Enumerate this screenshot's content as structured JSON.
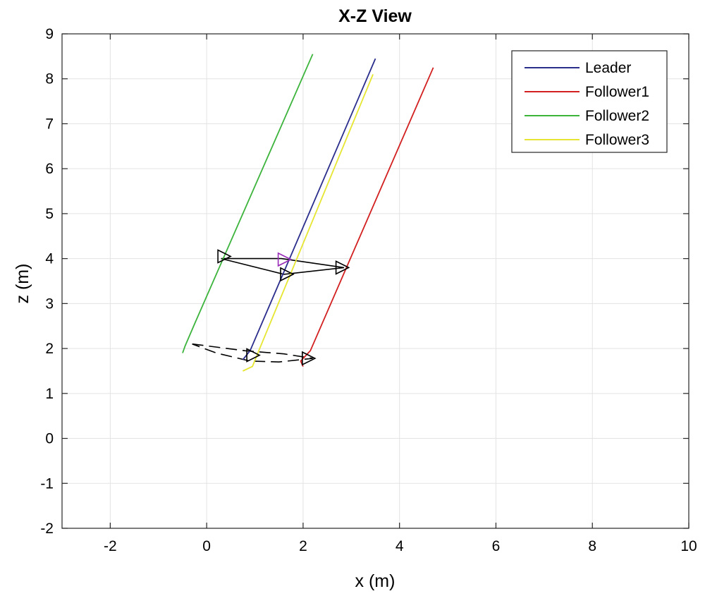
{
  "chart_data": {
    "type": "line",
    "title": "X-Z View",
    "xlabel": "x (m)",
    "ylabel": "z (m)",
    "xlim": [
      -3,
      10
    ],
    "ylim": [
      -2,
      9
    ],
    "xticks": [
      -2,
      0,
      2,
      4,
      6,
      8,
      10
    ],
    "yticks": [
      -2,
      -1,
      0,
      1,
      2,
      3,
      4,
      5,
      6,
      7,
      8,
      9
    ],
    "grid": true,
    "legend_position": "top-right",
    "series": [
      {
        "name": "Leader",
        "color": "#2b2d8c",
        "points": [
          [
            0.75,
            1.75
          ],
          [
            0.9,
            1.95
          ],
          [
            3.5,
            8.45
          ]
        ]
      },
      {
        "name": "Follower1",
        "color": "#d21f1f",
        "points": [
          [
            2.0,
            1.6
          ],
          [
            1.95,
            1.72
          ],
          [
            2.15,
            1.95
          ],
          [
            4.7,
            8.25
          ]
        ]
      },
      {
        "name": "Follower2",
        "color": "#3cb43c",
        "points": [
          [
            -0.5,
            1.9
          ],
          [
            -0.45,
            2.05
          ],
          [
            -0.25,
            2.55
          ],
          [
            2.2,
            8.55
          ]
        ]
      },
      {
        "name": "Follower3",
        "color": "#e6e632",
        "points": [
          [
            0.75,
            1.5
          ],
          [
            0.95,
            1.6
          ],
          [
            1.1,
            2.0
          ],
          [
            3.45,
            8.1
          ]
        ]
      }
    ],
    "formation_lines": [
      {
        "style": "dashed",
        "color": "#000000",
        "points": [
          [
            -0.3,
            2.1
          ],
          [
            0.8,
            1.95
          ],
          [
            1.6,
            1.88
          ],
          [
            2.2,
            1.78
          ],
          [
            1.5,
            1.7
          ],
          [
            0.9,
            1.72
          ],
          [
            0.2,
            1.9
          ],
          [
            -0.3,
            2.1
          ]
        ]
      },
      {
        "style": "solid",
        "color": "#000000",
        "points": [
          [
            0.3,
            4.0
          ],
          [
            1.6,
            3.65
          ],
          [
            2.85,
            3.8
          ],
          [
            1.55,
            4.0
          ],
          [
            0.3,
            4.0
          ]
        ]
      }
    ],
    "markers": [
      {
        "shape": "triangle-right",
        "color": "#000000",
        "center": [
          0.35,
          4.05
        ]
      },
      {
        "shape": "triangle-right",
        "color": "#000000",
        "center": [
          1.65,
          3.65
        ]
      },
      {
        "shape": "triangle-right",
        "color": "#000000",
        "center": [
          2.8,
          3.8
        ]
      },
      {
        "shape": "triangle-right",
        "color": "#9a2bb8",
        "center": [
          1.6,
          3.98
        ]
      },
      {
        "shape": "triangle-right",
        "color": "#000000",
        "center": [
          0.95,
          1.85
        ]
      },
      {
        "shape": "triangle-right",
        "color": "#000000",
        "center": [
          2.1,
          1.78
        ]
      }
    ]
  }
}
